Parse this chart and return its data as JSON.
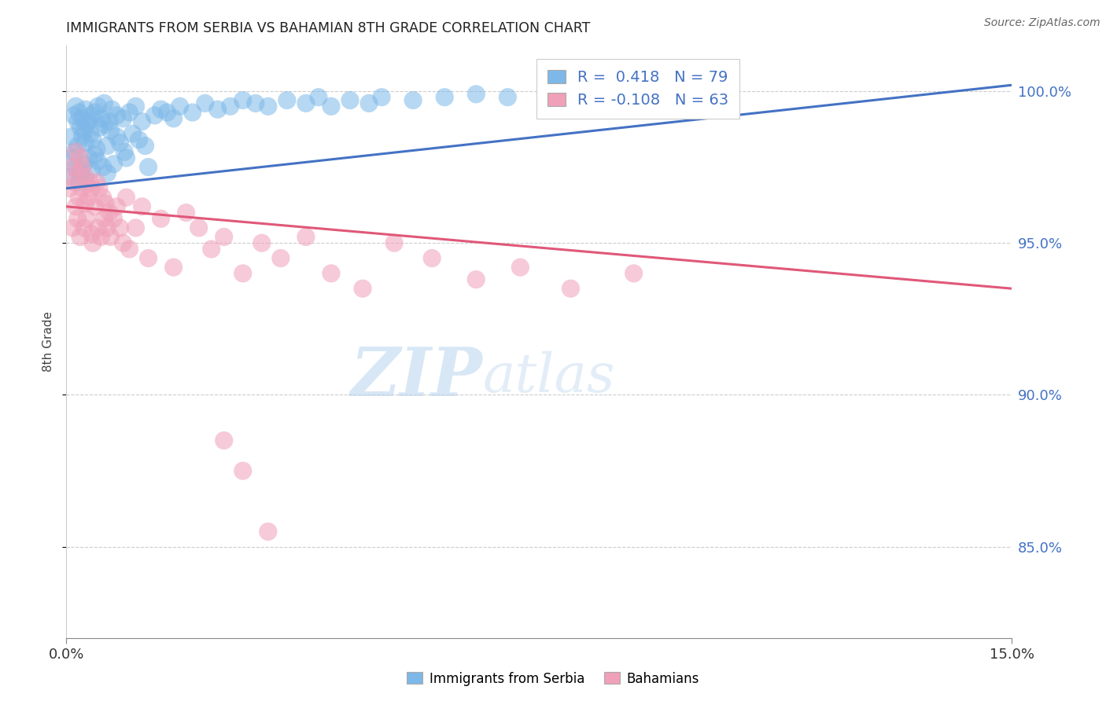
{
  "title": "IMMIGRANTS FROM SERBIA VS BAHAMIAN 8TH GRADE CORRELATION CHART",
  "source": "Source: ZipAtlas.com",
  "ylabel": "8th Grade",
  "xlim": [
    0.0,
    15.0
  ],
  "ylim": [
    82.0,
    101.5
  ],
  "yticks": [
    85.0,
    90.0,
    95.0,
    100.0
  ],
  "ytick_labels": [
    "85.0%",
    "90.0%",
    "95.0%",
    "100.0%"
  ],
  "blue_R": 0.418,
  "blue_N": 79,
  "pink_R": -0.108,
  "pink_N": 63,
  "blue_color": "#7DB8E8",
  "pink_color": "#F0A0B8",
  "blue_line_color": "#4472C4",
  "pink_line_color": "#E05878",
  "watermark_zip": "ZIP",
  "watermark_atlas": "atlas",
  "legend_label_blue": "Immigrants from Serbia",
  "legend_label_pink": "Bahamians",
  "blue_line_x0": 0.0,
  "blue_line_y0": 96.8,
  "blue_line_x1": 15.0,
  "blue_line_y1": 100.2,
  "pink_line_x0": 0.0,
  "pink_line_y0": 96.2,
  "pink_line_x1": 15.0,
  "pink_line_y1": 93.5,
  "blue_scatter_x": [
    0.05,
    0.08,
    0.1,
    0.12,
    0.12,
    0.15,
    0.15,
    0.18,
    0.18,
    0.2,
    0.2,
    0.22,
    0.22,
    0.25,
    0.25,
    0.28,
    0.28,
    0.3,
    0.3,
    0.3,
    0.32,
    0.35,
    0.35,
    0.38,
    0.4,
    0.4,
    0.42,
    0.45,
    0.45,
    0.48,
    0.5,
    0.5,
    0.52,
    0.55,
    0.58,
    0.6,
    0.6,
    0.65,
    0.65,
    0.68,
    0.7,
    0.72,
    0.75,
    0.8,
    0.8,
    0.85,
    0.9,
    0.92,
    0.95,
    1.0,
    1.05,
    1.1,
    1.15,
    1.2,
    1.25,
    1.3,
    1.4,
    1.5,
    1.6,
    1.7,
    1.8,
    2.0,
    2.2,
    2.4,
    2.6,
    2.8,
    3.0,
    3.2,
    3.5,
    3.8,
    4.0,
    4.2,
    4.5,
    4.8,
    5.0,
    5.5,
    6.0,
    6.5,
    7.0
  ],
  "blue_scatter_y": [
    97.2,
    98.5,
    97.8,
    99.2,
    98.0,
    99.5,
    97.5,
    99.0,
    98.2,
    99.3,
    97.0,
    98.8,
    97.3,
    99.1,
    98.5,
    98.7,
    97.6,
    99.4,
    98.3,
    97.1,
    98.9,
    99.0,
    97.8,
    98.6,
    99.2,
    97.4,
    98.4,
    99.3,
    97.9,
    98.1,
    99.5,
    97.7,
    98.8,
    99.1,
    97.5,
    98.9,
    99.6,
    98.2,
    97.3,
    99.0,
    98.7,
    99.4,
    97.6,
    99.2,
    98.5,
    98.3,
    99.1,
    98.0,
    97.8,
    99.3,
    98.6,
    99.5,
    98.4,
    99.0,
    98.2,
    97.5,
    99.2,
    99.4,
    99.3,
    99.1,
    99.5,
    99.3,
    99.6,
    99.4,
    99.5,
    99.7,
    99.6,
    99.5,
    99.7,
    99.6,
    99.8,
    99.5,
    99.7,
    99.6,
    99.8,
    99.7,
    99.8,
    99.9,
    99.8
  ],
  "pink_scatter_x": [
    0.05,
    0.08,
    0.1,
    0.12,
    0.15,
    0.15,
    0.18,
    0.18,
    0.2,
    0.22,
    0.22,
    0.25,
    0.25,
    0.28,
    0.3,
    0.3,
    0.32,
    0.35,
    0.38,
    0.4,
    0.4,
    0.42,
    0.45,
    0.48,
    0.5,
    0.52,
    0.55,
    0.58,
    0.6,
    0.62,
    0.65,
    0.68,
    0.7,
    0.75,
    0.8,
    0.85,
    0.9,
    0.95,
    1.0,
    1.1,
    1.2,
    1.3,
    1.5,
    1.7,
    1.9,
    2.1,
    2.3,
    2.5,
    2.8,
    3.1,
    3.4,
    3.8,
    4.2,
    4.7,
    5.2,
    5.8,
    6.5,
    7.2,
    8.0,
    9.0,
    2.5,
    2.8,
    3.2
  ],
  "pink_scatter_y": [
    96.8,
    97.5,
    95.5,
    97.0,
    96.2,
    98.0,
    95.8,
    97.3,
    96.5,
    97.8,
    95.2,
    96.8,
    97.5,
    95.5,
    96.3,
    97.2,
    95.8,
    96.5,
    97.0,
    95.3,
    96.8,
    95.0,
    96.2,
    97.0,
    95.5,
    96.8,
    95.2,
    96.5,
    95.8,
    96.3,
    95.5,
    96.0,
    95.2,
    95.8,
    96.2,
    95.5,
    95.0,
    96.5,
    94.8,
    95.5,
    96.2,
    94.5,
    95.8,
    94.2,
    96.0,
    95.5,
    94.8,
    95.2,
    94.0,
    95.0,
    94.5,
    95.2,
    94.0,
    93.5,
    95.0,
    94.5,
    93.8,
    94.2,
    93.5,
    94.0,
    88.5,
    87.5,
    85.5
  ]
}
